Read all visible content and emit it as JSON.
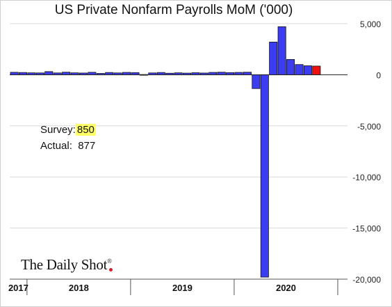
{
  "chart_data": {
    "type": "bar",
    "title": "US Private Nonfarm Payrolls MoM ('000)",
    "ylim": [
      -20000,
      5000
    ],
    "yticks": [
      5000,
      0,
      -5000,
      -10000,
      -15000,
      -20000
    ],
    "ytick_labels": [
      "5,000",
      "0",
      "-5,000",
      "-10,000",
      "-15,000",
      "-20,000"
    ],
    "y_axis_side": "right",
    "grid": "horizontal",
    "year_labels": [
      "2017",
      "2018",
      "2019",
      "2020"
    ],
    "series": [
      {
        "color": "#3c3cf0",
        "x": [
          "2017-11",
          "2017-12",
          "2018-01",
          "2018-02",
          "2018-03",
          "2018-04",
          "2018-05",
          "2018-06",
          "2018-07",
          "2018-08",
          "2018-09",
          "2018-10",
          "2018-11",
          "2018-12",
          "2019-01",
          "2019-02",
          "2019-03",
          "2019-04",
          "2019-05",
          "2019-06",
          "2019-07",
          "2019-08",
          "2019-09",
          "2019-10",
          "2019-11",
          "2019-12",
          "2020-01",
          "2020-02",
          "2020-03",
          "2020-04",
          "2020-05",
          "2020-06",
          "2020-07",
          "2020-08",
          "2020-09"
        ],
        "values": [
          240,
          220,
          190,
          180,
          310,
          180,
          250,
          190,
          170,
          240,
          130,
          220,
          180,
          230,
          210,
          20,
          180,
          220,
          150,
          190,
          160,
          200,
          170,
          230,
          250,
          210,
          230,
          250,
          -1350,
          -19800,
          3200,
          4700,
          1500,
          1000,
          880
        ]
      },
      {
        "color": "#ee1111",
        "x": [
          "2020-10"
        ],
        "values": [
          850
        ]
      }
    ]
  },
  "annotation": {
    "survey_label": "Survey:",
    "survey_value": "850",
    "actual_label": "Actual:",
    "actual_value": "877"
  },
  "brand": {
    "name": "The Daily Shot",
    "mark": "®"
  }
}
